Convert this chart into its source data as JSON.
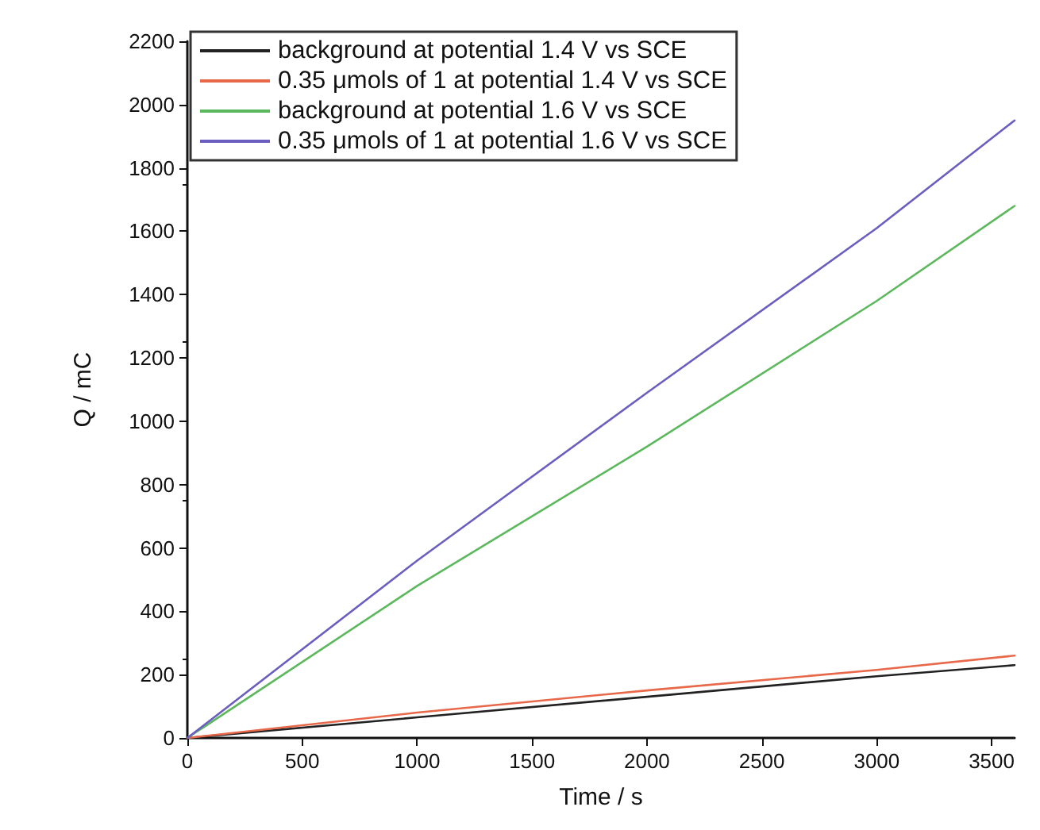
{
  "chart_data": {
    "type": "line",
    "xlabel": "Time / s",
    "ylabel": "Q / mC",
    "xlim": [
      0,
      3600
    ],
    "xticks": [
      0,
      500,
      1000,
      1500,
      2000,
      2500,
      3000,
      3500
    ],
    "ylim": [
      0,
      2200
    ],
    "yticks": [
      0,
      200,
      400,
      600,
      800,
      1000,
      1200,
      1400,
      1600,
      1800,
      2000,
      2200
    ],
    "grid": false,
    "legend": "top left",
    "marker": "none",
    "line_style": "solid",
    "x": [
      0,
      1000,
      2000,
      3000,
      3600
    ],
    "series": [
      {
        "name": "background at potential 1.4 V vs SCE",
        "color": "#222222",
        "values": [
          0,
          65,
          130,
          195,
          230
        ]
      },
      {
        "name": "0.35 μmols of 1 at potential 1.4 V vs SCE",
        "color": "#e8684a",
        "values": [
          0,
          80,
          150,
          215,
          260
        ]
      },
      {
        "name": "background at potential 1.6 V vs SCE",
        "color": "#5cb85c",
        "values": [
          0,
          480,
          920,
          1380,
          1680
        ]
      },
      {
        "name": "0.35 μmols of 1 at potential 1.6 V vs SCE",
        "color": "#6a5fc0",
        "values": [
          0,
          560,
          1090,
          1610,
          1950
        ]
      }
    ]
  }
}
